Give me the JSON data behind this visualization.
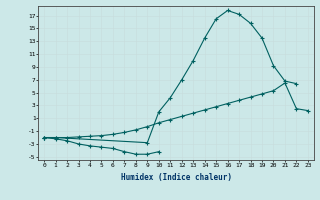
{
  "title": "",
  "xlabel": "Humidex (Indice chaleur)",
  "background_color": "#cce8e8",
  "grid_color": "#b8d0d0",
  "line_color": "#006060",
  "xlim": [
    -0.5,
    23.5
  ],
  "ylim": [
    -5.5,
    18.5
  ],
  "xticks": [
    0,
    1,
    2,
    3,
    4,
    5,
    6,
    7,
    8,
    9,
    10,
    11,
    12,
    13,
    14,
    15,
    16,
    17,
    18,
    19,
    20,
    21,
    22,
    23
  ],
  "yticks": [
    -5,
    -3,
    -1,
    1,
    3,
    5,
    7,
    9,
    11,
    13,
    15,
    17
  ],
  "series1_x": [
    0,
    1,
    2,
    3,
    4,
    5,
    6,
    7,
    8,
    9,
    10
  ],
  "series1_y": [
    -2.0,
    -2.2,
    -2.5,
    -3.0,
    -3.3,
    -3.5,
    -3.7,
    -4.2,
    -4.6,
    -4.6,
    -4.2
  ],
  "series2_x": [
    0,
    1,
    9,
    10,
    11,
    12,
    13,
    14,
    15,
    16,
    17,
    18,
    19,
    20,
    21,
    22
  ],
  "series2_y": [
    -2.0,
    -2.0,
    -2.8,
    2.0,
    4.2,
    7.0,
    10.0,
    13.5,
    16.5,
    17.8,
    17.2,
    15.8,
    13.5,
    9.2,
    6.8,
    6.4
  ],
  "series3_x": [
    0,
    1,
    2,
    3,
    4,
    5,
    6,
    7,
    8,
    9,
    10,
    11,
    12,
    13,
    14,
    15,
    16,
    17,
    18,
    19,
    20,
    21,
    22,
    23
  ],
  "series3_y": [
    -2.0,
    -2.0,
    -2.0,
    -1.9,
    -1.8,
    -1.7,
    -1.5,
    -1.2,
    -0.8,
    -0.3,
    0.3,
    0.8,
    1.3,
    1.8,
    2.3,
    2.8,
    3.3,
    3.8,
    4.3,
    4.8,
    5.3,
    6.5,
    2.5,
    2.2
  ]
}
